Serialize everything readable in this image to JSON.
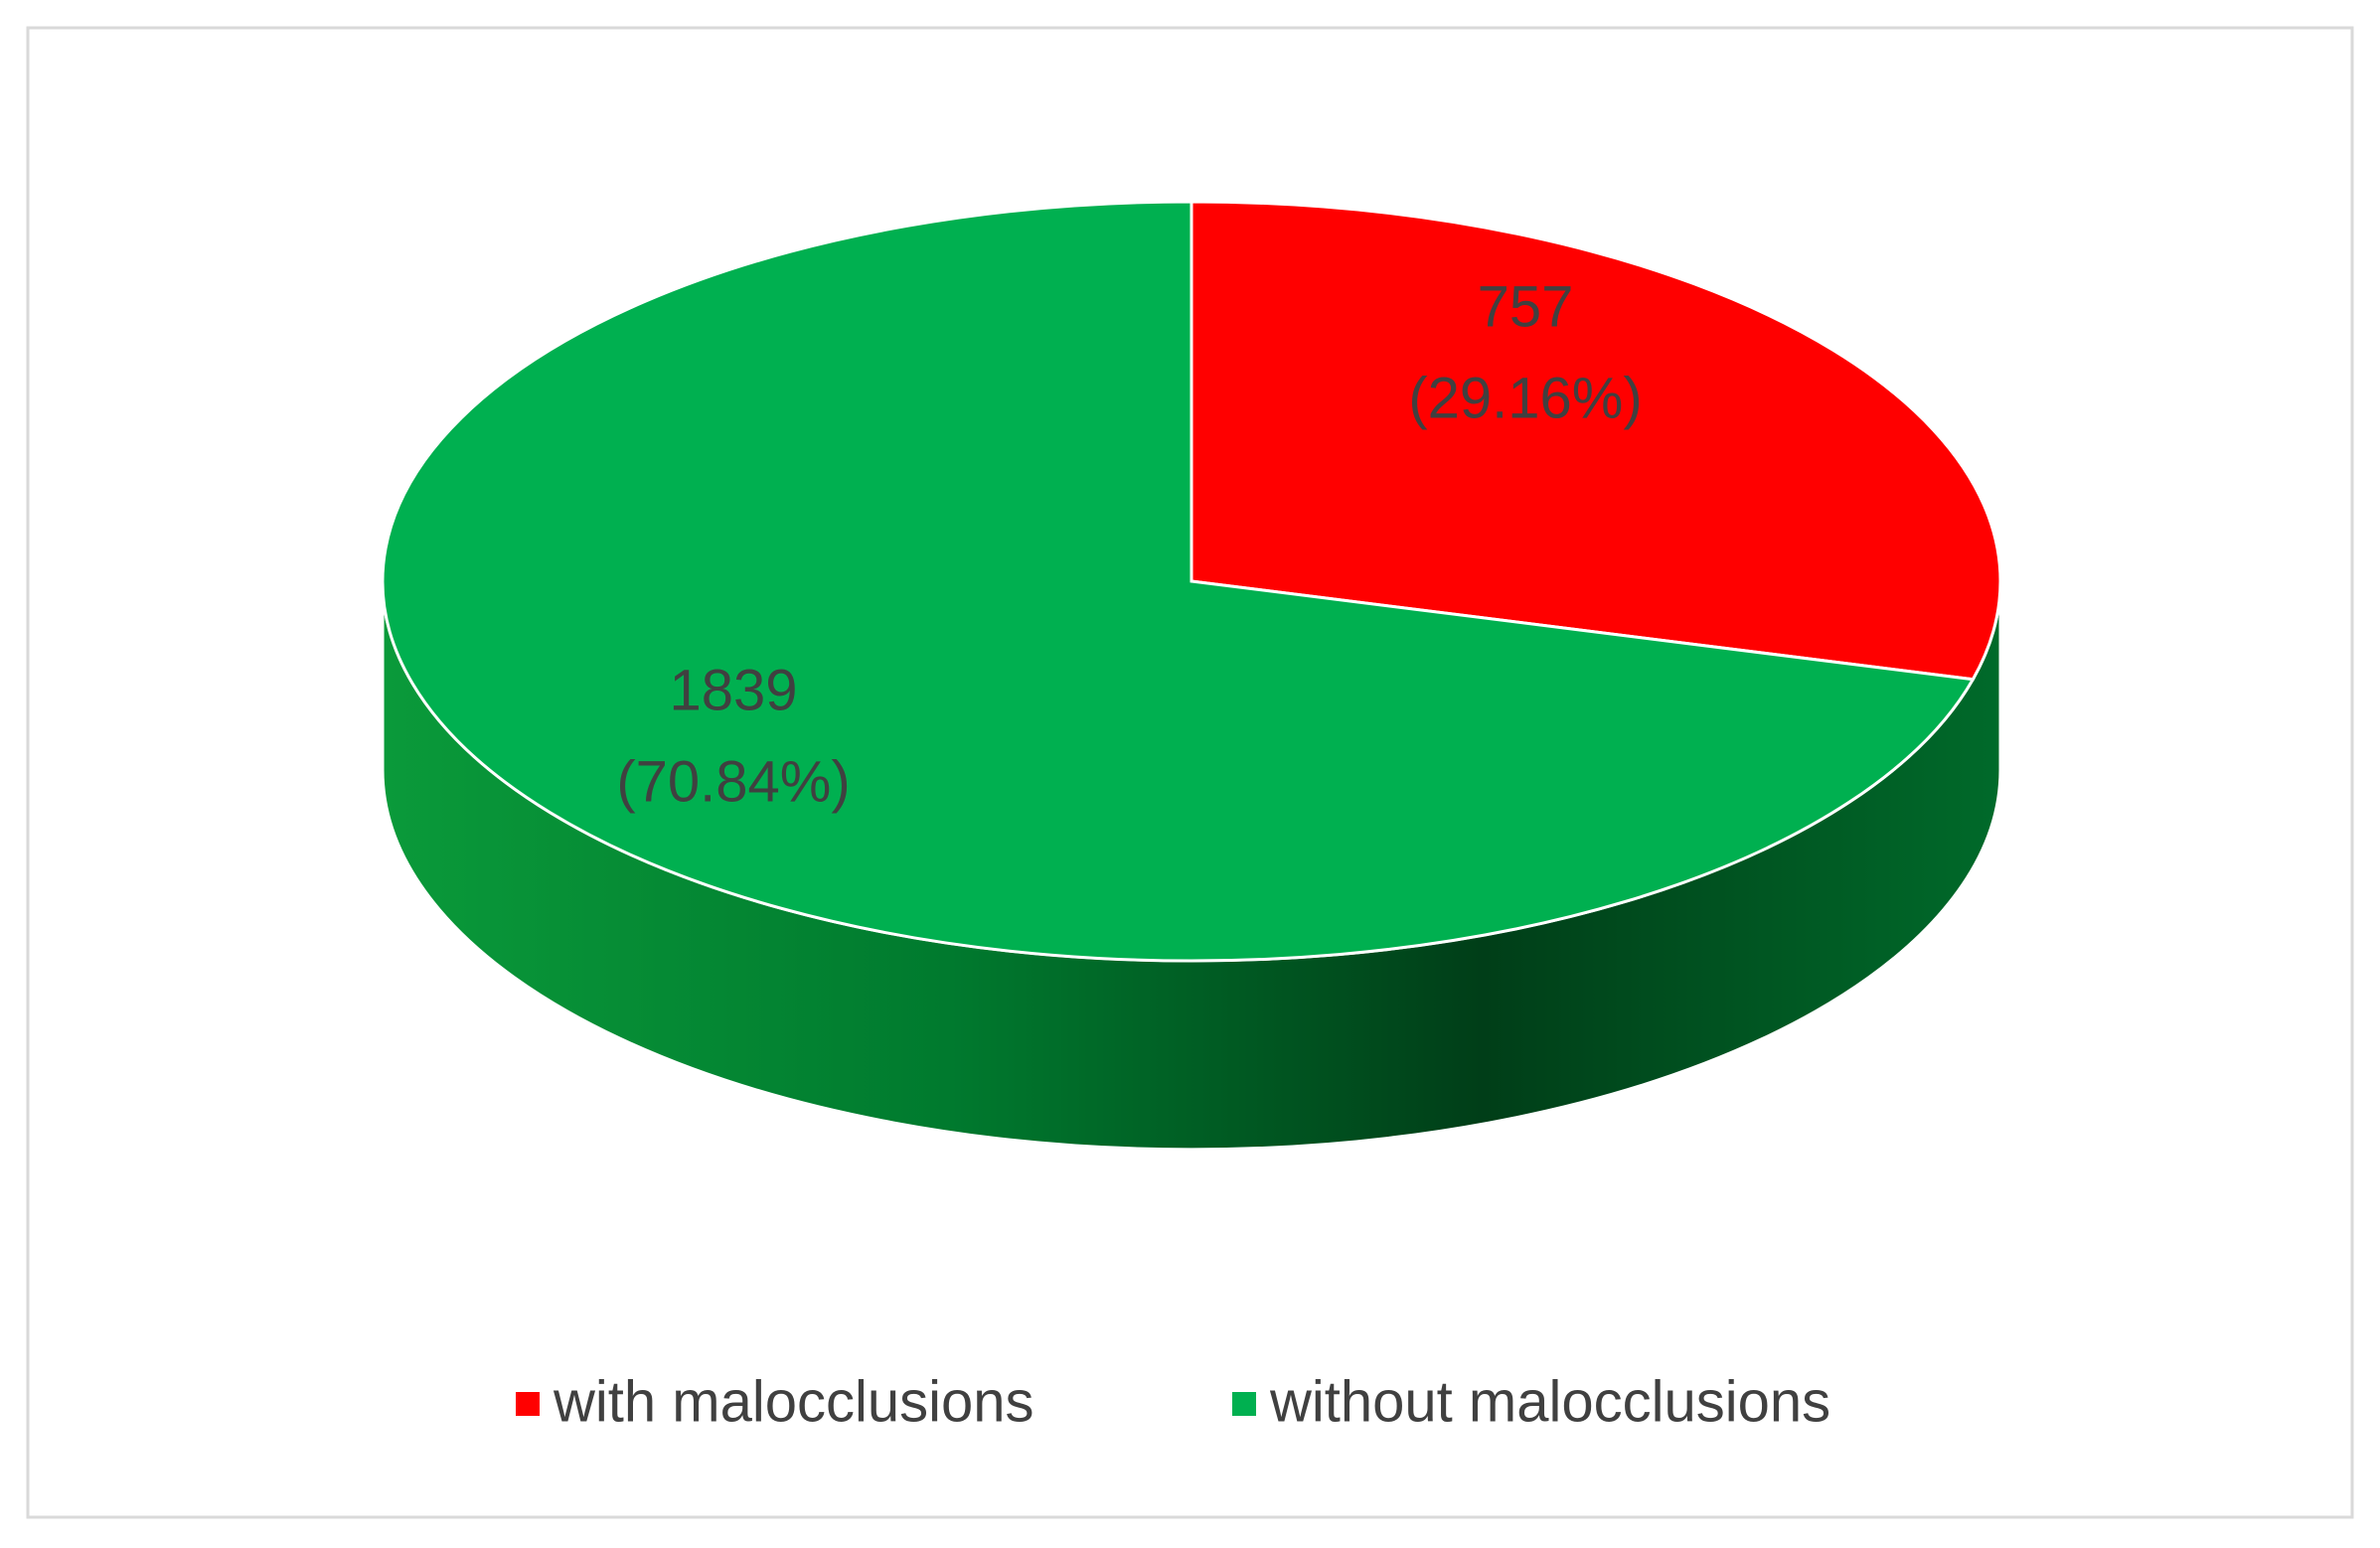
{
  "chart_data": {
    "type": "pie3d",
    "categories": [
      "with malocclusions",
      "without malocclusions"
    ],
    "values": [
      757,
      1839
    ],
    "percents": [
      29.16,
      70.84
    ],
    "percent_labels": [
      "(29.16%)",
      "(70.84%)"
    ],
    "colors": [
      "#ff0000",
      "#00b050"
    ],
    "legend": "bottom"
  }
}
